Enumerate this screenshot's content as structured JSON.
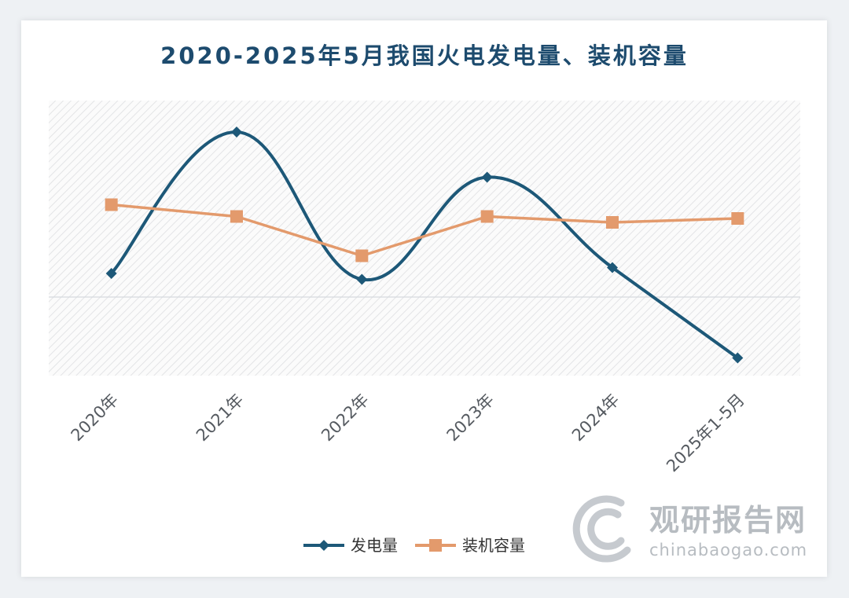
{
  "chart_data": {
    "type": "line",
    "title": "2020-2025年5月我国火电发电量、装机容量",
    "categories": [
      "2020年",
      "2021年",
      "2022年",
      "2023年",
      "2024年",
      "2025年1-5月"
    ],
    "series": [
      {
        "name": "发电量",
        "color": "#1d5878",
        "marker": "diamond",
        "values": [
          1.2,
          8.4,
          0.9,
          6.1,
          1.5,
          -3.1
        ]
      },
      {
        "name": "装机容量",
        "color": "#e39a6c",
        "marker": "square",
        "values": [
          4.7,
          4.1,
          2.1,
          4.1,
          3.8,
          4.0
        ]
      }
    ],
    "ylim": [
      -4,
      10
    ],
    "y_axis_labels_shown": false,
    "grid": false,
    "zero_line": true,
    "legend": "bottom"
  },
  "watermark": {
    "brand_cn": "观研报告网",
    "brand_en": "chinabaogao.com"
  }
}
